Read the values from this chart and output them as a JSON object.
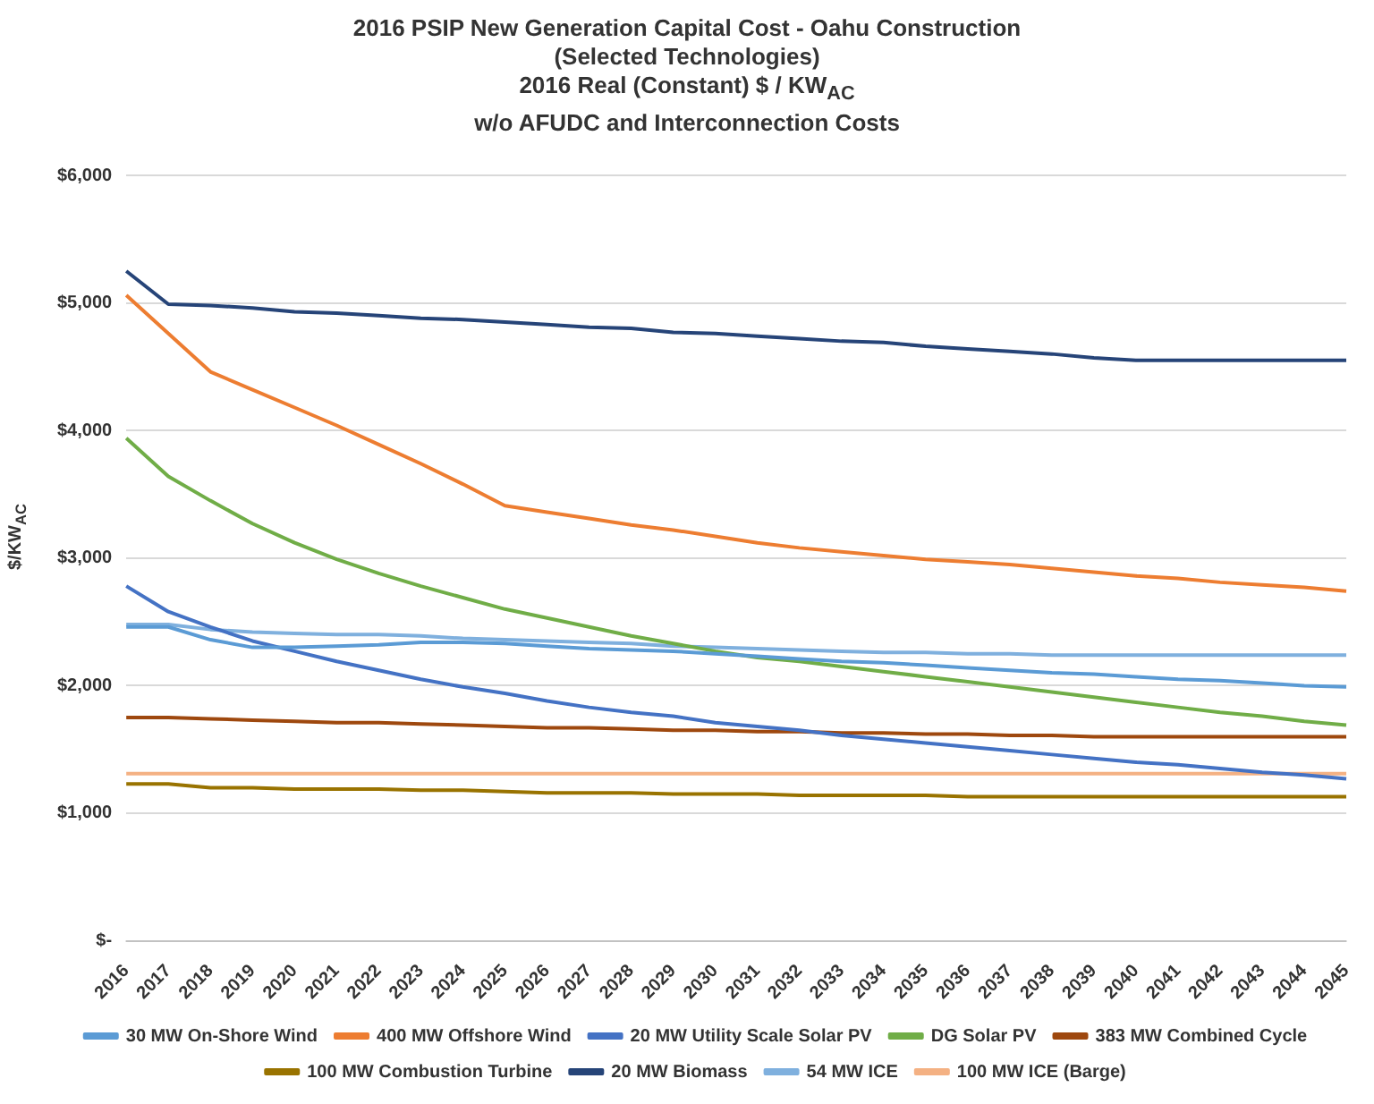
{
  "chart_data": {
    "type": "line",
    "title": "2016 PSIP New Generation Capital Cost - Oahu Construction",
    "subtitle": "(Selected Technologies)\n2016 Real (Constant) $ / KW$_{AC}$\nw/o AFUDC and Interconnection Costs",
    "ylabel": "$/KW$_{AC}$",
    "categories": [
      "2016",
      "2017",
      "2018",
      "2019",
      "2020",
      "2021",
      "2022",
      "2023",
      "2024",
      "2025",
      "2026",
      "2027",
      "2028",
      "2029",
      "2030",
      "2031",
      "2032",
      "2033",
      "2034",
      "2035",
      "2036",
      "2037",
      "2038",
      "2039",
      "2040",
      "2041",
      "2042",
      "2043",
      "2044",
      "2045"
    ],
    "series": [
      {
        "name": "30 MW On-Shore Wind",
        "color": "#5b9bd5",
        "values": [
          2460,
          2460,
          2360,
          2300,
          2300,
          2310,
          2320,
          2340,
          2340,
          2330,
          2310,
          2290,
          2280,
          2270,
          2250,
          2230,
          2210,
          2190,
          2180,
          2160,
          2140,
          2120,
          2100,
          2090,
          2070,
          2050,
          2040,
          2020,
          2000,
          1990
        ]
      },
      {
        "name": "400 MW Offshore Wind",
        "color": "#ed7d31",
        "values": [
          5060,
          4760,
          4460,
          4320,
          4180,
          4040,
          3890,
          3740,
          3580,
          3410,
          3360,
          3310,
          3260,
          3220,
          3170,
          3120,
          3080,
          3050,
          3020,
          2990,
          2970,
          2950,
          2920,
          2890,
          2860,
          2840,
          2810,
          2790,
          2770,
          2740
        ]
      },
      {
        "name": "20 MW Utility Scale Solar PV",
        "color": "#4472c4",
        "values": [
          2780,
          2580,
          2460,
          2350,
          2270,
          2190,
          2120,
          2050,
          1990,
          1940,
          1880,
          1830,
          1790,
          1760,
          1710,
          1680,
          1650,
          1610,
          1580,
          1550,
          1520,
          1490,
          1460,
          1430,
          1400,
          1380,
          1350,
          1320,
          1300,
          1270
        ]
      },
      {
        "name": "DG Solar PV",
        "color": "#70ad47",
        "values": [
          3940,
          3640,
          3450,
          3270,
          3120,
          2990,
          2880,
          2780,
          2690,
          2600,
          2530,
          2460,
          2390,
          2330,
          2270,
          2220,
          2190,
          2150,
          2110,
          2070,
          2030,
          1990,
          1950,
          1910,
          1870,
          1830,
          1790,
          1760,
          1720,
          1690
        ]
      },
      {
        "name": "383 MW Combined Cycle",
        "color": "#9e480e",
        "values": [
          1750,
          1750,
          1740,
          1730,
          1720,
          1710,
          1710,
          1700,
          1690,
          1680,
          1670,
          1670,
          1660,
          1650,
          1650,
          1640,
          1640,
          1630,
          1630,
          1620,
          1620,
          1610,
          1610,
          1600,
          1600,
          1600,
          1600,
          1600,
          1600,
          1600
        ]
      },
      {
        "name": "100 MW Combustion Turbine",
        "color": "#997300",
        "values": [
          1230,
          1230,
          1200,
          1200,
          1190,
          1190,
          1190,
          1180,
          1180,
          1170,
          1160,
          1160,
          1160,
          1150,
          1150,
          1150,
          1140,
          1140,
          1140,
          1140,
          1130,
          1130,
          1130,
          1130,
          1130,
          1130,
          1130,
          1130,
          1130,
          1130
        ]
      },
      {
        "name": "20 MW Biomass",
        "color": "#264478",
        "values": [
          5250,
          4990,
          4980,
          4960,
          4930,
          4920,
          4900,
          4880,
          4870,
          4850,
          4830,
          4810,
          4800,
          4770,
          4760,
          4740,
          4720,
          4700,
          4690,
          4660,
          4640,
          4620,
          4600,
          4570,
          4550,
          4550,
          4550,
          4550,
          4550,
          4550
        ]
      },
      {
        "name": "54 MW ICE",
        "color": "#7fb0de",
        "values": [
          2480,
          2480,
          2440,
          2420,
          2410,
          2400,
          2400,
          2390,
          2370,
          2360,
          2350,
          2340,
          2330,
          2310,
          2300,
          2290,
          2280,
          2270,
          2260,
          2260,
          2250,
          2250,
          2240,
          2240,
          2240,
          2240,
          2240,
          2240,
          2240,
          2240
        ]
      },
      {
        "name": "100 MW ICE (Barge)",
        "color": "#f4b183",
        "values": [
          1310,
          1310,
          1310,
          1310,
          1310,
          1310,
          1310,
          1310,
          1310,
          1310,
          1310,
          1310,
          1310,
          1310,
          1310,
          1310,
          1310,
          1310,
          1310,
          1310,
          1310,
          1310,
          1310,
          1310,
          1310,
          1310,
          1310,
          1310,
          1310,
          1310
        ]
      }
    ],
    "ylim": [
      0,
      6000
    ],
    "yticks": [
      {
        "value": 0,
        "label": "$-"
      },
      {
        "value": 1000,
        "label": "$1,000"
      },
      {
        "value": 2000,
        "label": "$2,000"
      },
      {
        "value": 3000,
        "label": "$3,000"
      },
      {
        "value": 4000,
        "label": "$4,000"
      },
      {
        "value": 5000,
        "label": "$5,000"
      },
      {
        "value": 6000,
        "label": "$6,000"
      }
    ],
    "grid": "y",
    "legend": "bottom",
    "marker": "none",
    "line_style": "solid"
  }
}
